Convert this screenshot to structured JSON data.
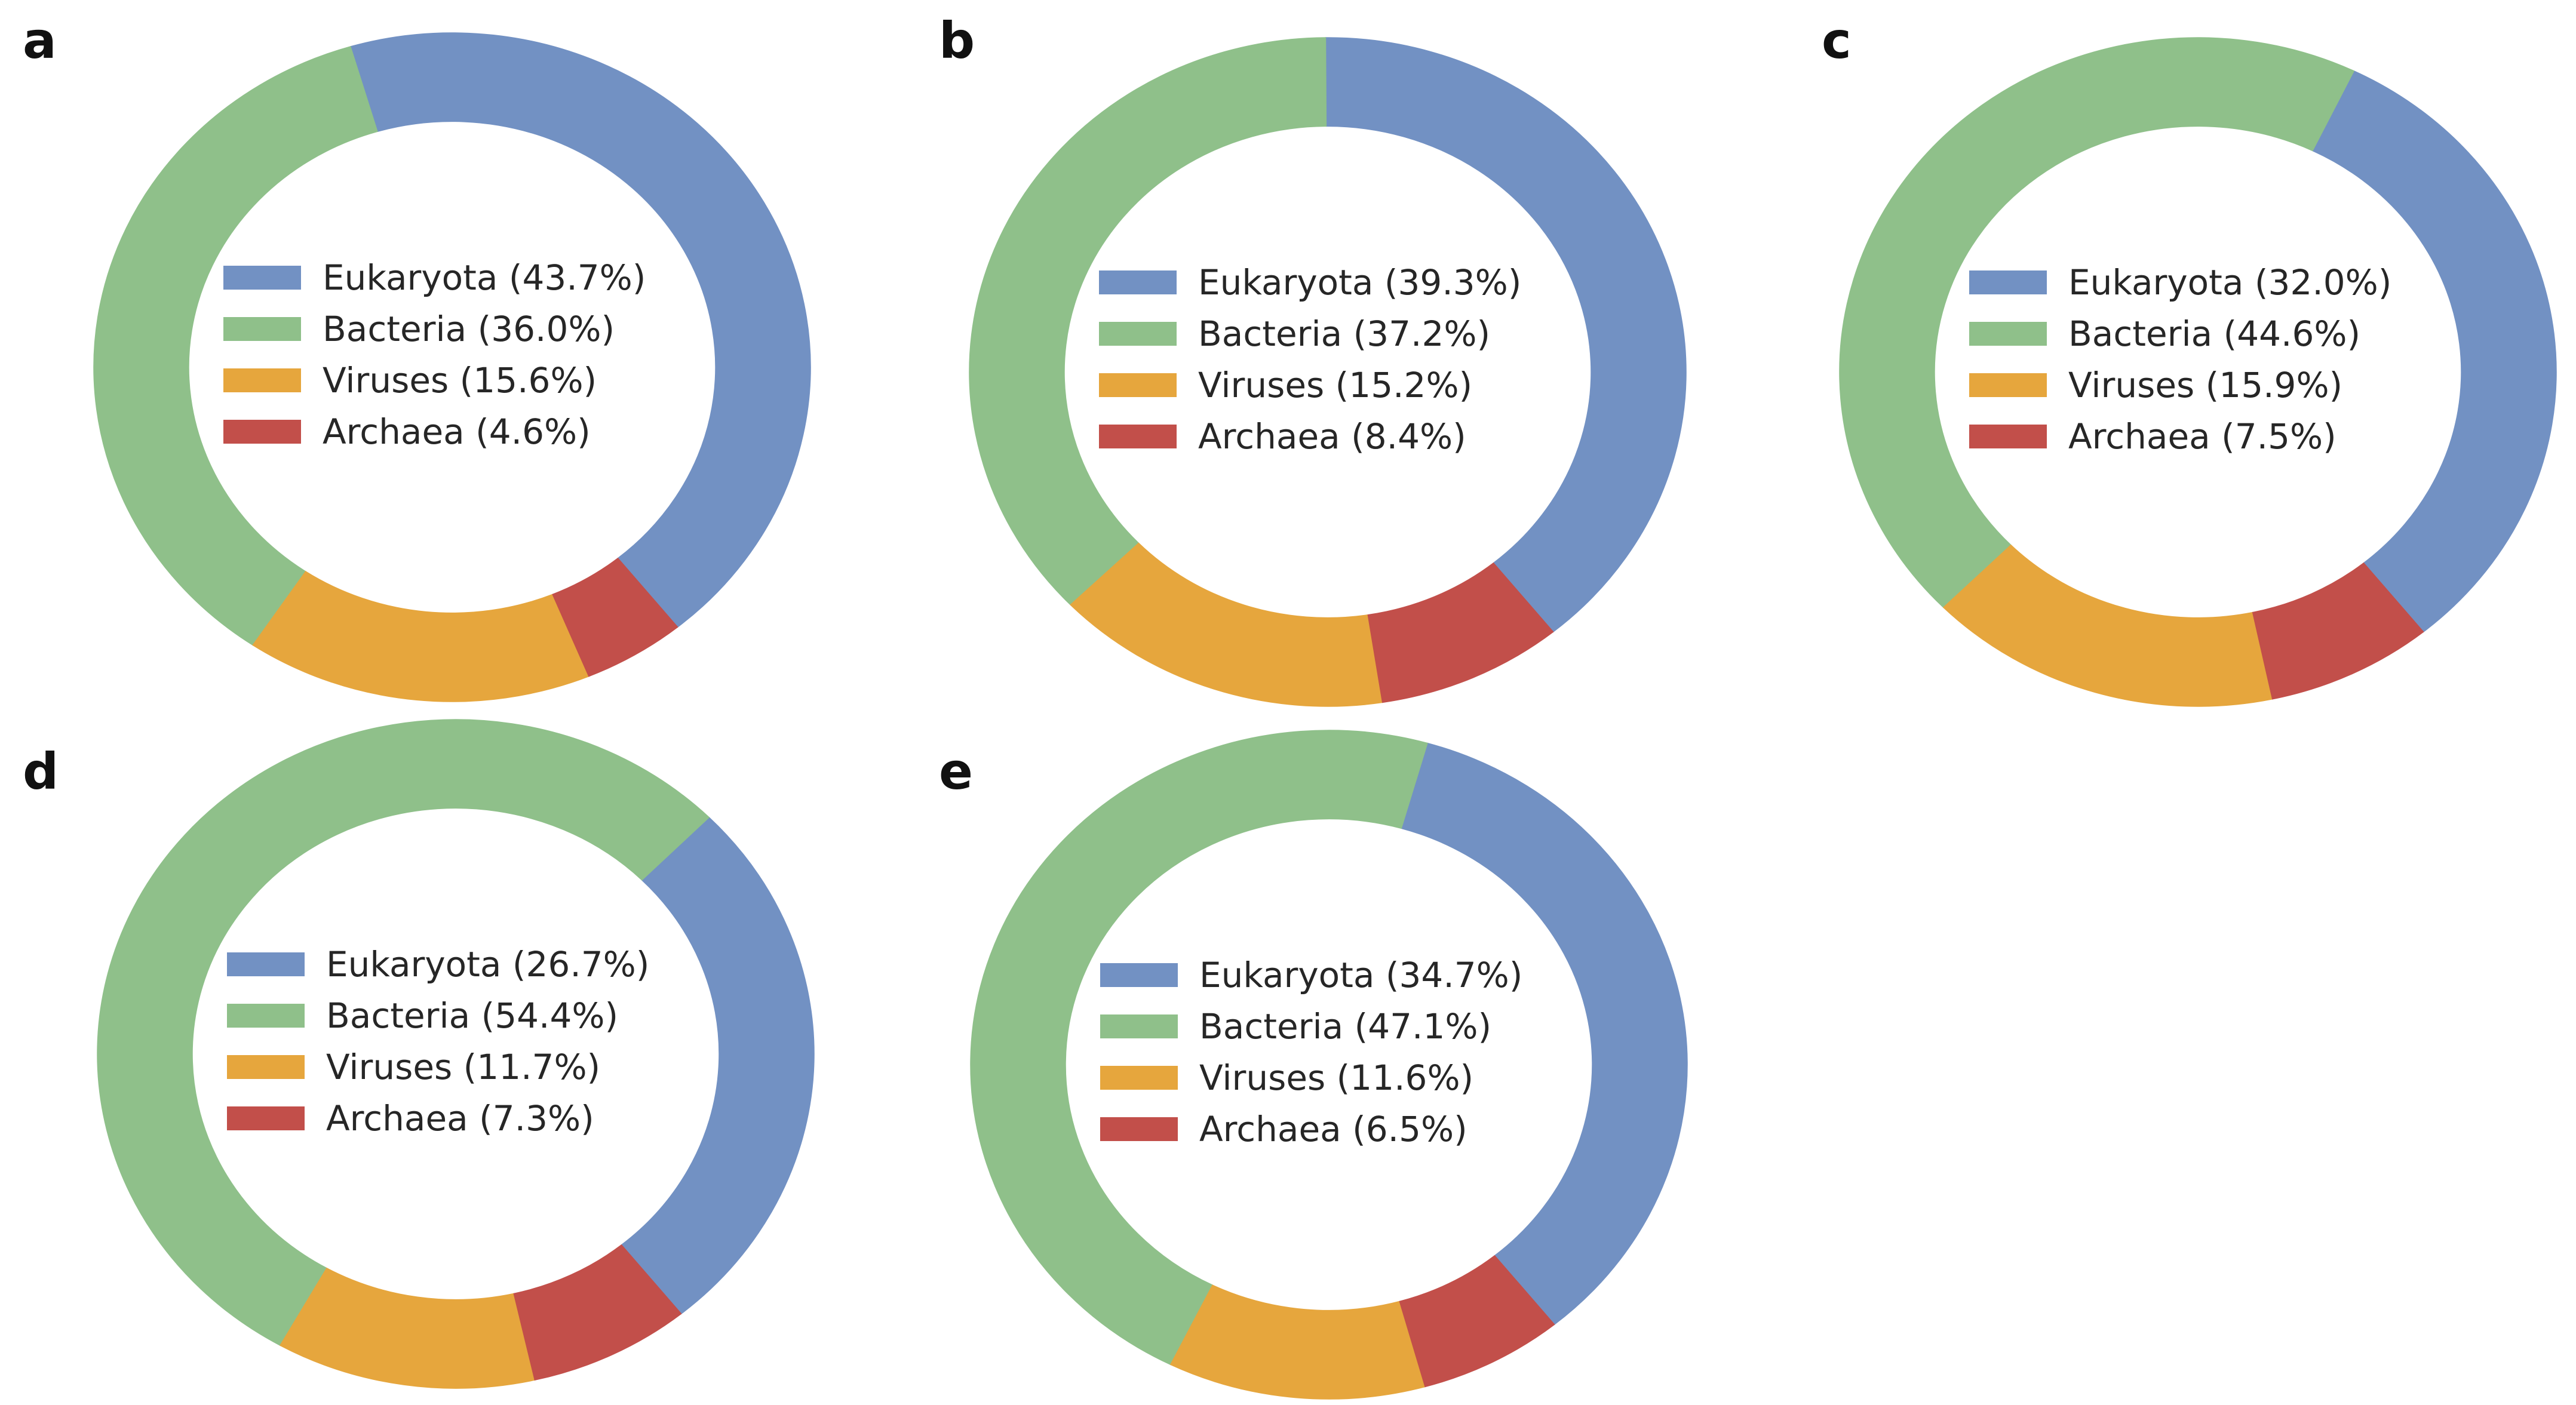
{
  "figure": {
    "background": "#ffffff",
    "text_color": "#262626",
    "letter_color": "#111111",
    "palette": {
      "Eukaryota": "#7291c3",
      "Bacteria": "#8fc08a",
      "Viruses": "#e6a63d",
      "Archaea": "#c24f4a"
    }
  },
  "chart_data": [
    {
      "type": "pie",
      "panel": "a",
      "donut": true,
      "start_angle_deg": -51,
      "counterclock": true,
      "legend_position": "center",
      "categories": [
        "Eukaryota",
        "Bacteria",
        "Viruses",
        "Archaea"
      ],
      "values": [
        43.7,
        36.0,
        15.6,
        4.6
      ],
      "legend_labels": [
        "Eukaryota (43.7%)",
        "Bacteria (36.0%)",
        "Viruses (15.6%)",
        "Archaea (4.6%)"
      ]
    },
    {
      "type": "pie",
      "panel": "b",
      "donut": true,
      "start_angle_deg": -51,
      "counterclock": true,
      "legend_position": "center",
      "categories": [
        "Eukaryota",
        "Bacteria",
        "Viruses",
        "Archaea"
      ],
      "values": [
        39.3,
        37.2,
        15.2,
        8.4
      ],
      "legend_labels": [
        "Eukaryota (39.3%)",
        "Bacteria (37.2%)",
        "Viruses (15.2%)",
        "Archaea (8.4%)"
      ]
    },
    {
      "type": "pie",
      "panel": "c",
      "donut": true,
      "start_angle_deg": -51,
      "counterclock": true,
      "legend_position": "center",
      "categories": [
        "Eukaryota",
        "Bacteria",
        "Viruses",
        "Archaea"
      ],
      "values": [
        32.0,
        44.6,
        15.9,
        7.5
      ],
      "legend_labels": [
        "Eukaryota (32.0%)",
        "Bacteria (44.6%)",
        "Viruses (15.9%)",
        "Archaea (7.5%)"
      ]
    },
    {
      "type": "pie",
      "panel": "d",
      "donut": true,
      "start_angle_deg": -51,
      "counterclock": true,
      "legend_position": "center",
      "categories": [
        "Eukaryota",
        "Bacteria",
        "Viruses",
        "Archaea"
      ],
      "values": [
        26.7,
        54.4,
        11.7,
        7.3
      ],
      "legend_labels": [
        "Eukaryota (26.7%)",
        "Bacteria (54.4%)",
        "Viruses (11.7%)",
        "Archaea (7.3%)"
      ]
    },
    {
      "type": "pie",
      "panel": "e",
      "donut": true,
      "start_angle_deg": -51,
      "counterclock": true,
      "legend_position": "center",
      "categories": [
        "Eukaryota",
        "Bacteria",
        "Viruses",
        "Archaea"
      ],
      "values": [
        34.7,
        47.1,
        11.6,
        6.5
      ],
      "legend_labels": [
        "Eukaryota (34.7%)",
        "Bacteria (47.1%)",
        "Viruses (11.6%)",
        "Archaea (6.5%)"
      ]
    }
  ]
}
